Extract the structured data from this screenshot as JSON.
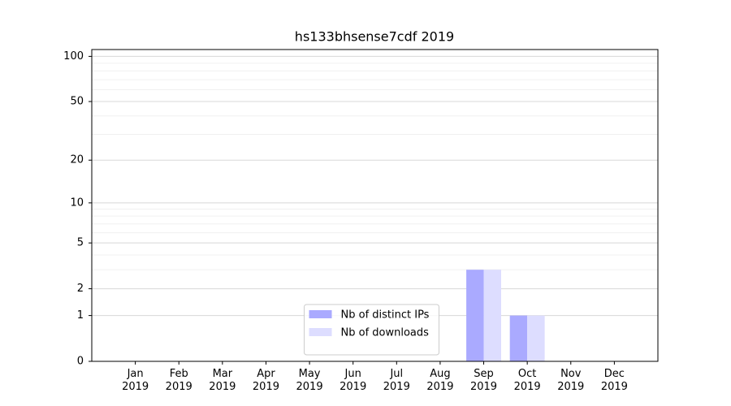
{
  "chart_data": {
    "type": "bar",
    "title": "hs133bhsense7cdf 2019",
    "categories": [
      "Jan 2019",
      "Feb 2019",
      "Mar 2019",
      "Apr 2019",
      "May 2019",
      "Jun 2019",
      "Jul 2019",
      "Aug 2019",
      "Sep 2019",
      "Oct 2019",
      "Nov 2019",
      "Dec 2019"
    ],
    "series": [
      {
        "name": "Nb of distinct IPs",
        "color": "#aaaaff",
        "values": [
          0,
          0,
          0,
          0,
          0,
          0,
          0,
          0,
          3,
          1,
          0,
          0
        ]
      },
      {
        "name": "Nb of downloads",
        "color": "#ddddff",
        "values": [
          0,
          0,
          0,
          0,
          0,
          0,
          0,
          0,
          3,
          1,
          0,
          0
        ]
      }
    ],
    "yscale": "symlog",
    "ylim": [
      0,
      111
    ],
    "yticks": [
      0,
      1,
      2,
      5,
      10,
      20,
      50,
      100
    ],
    "yminorticks": [
      3,
      4,
      6,
      7,
      8,
      9,
      30,
      40,
      60,
      70,
      80,
      90
    ],
    "grid": true,
    "legend": "lower center"
  }
}
